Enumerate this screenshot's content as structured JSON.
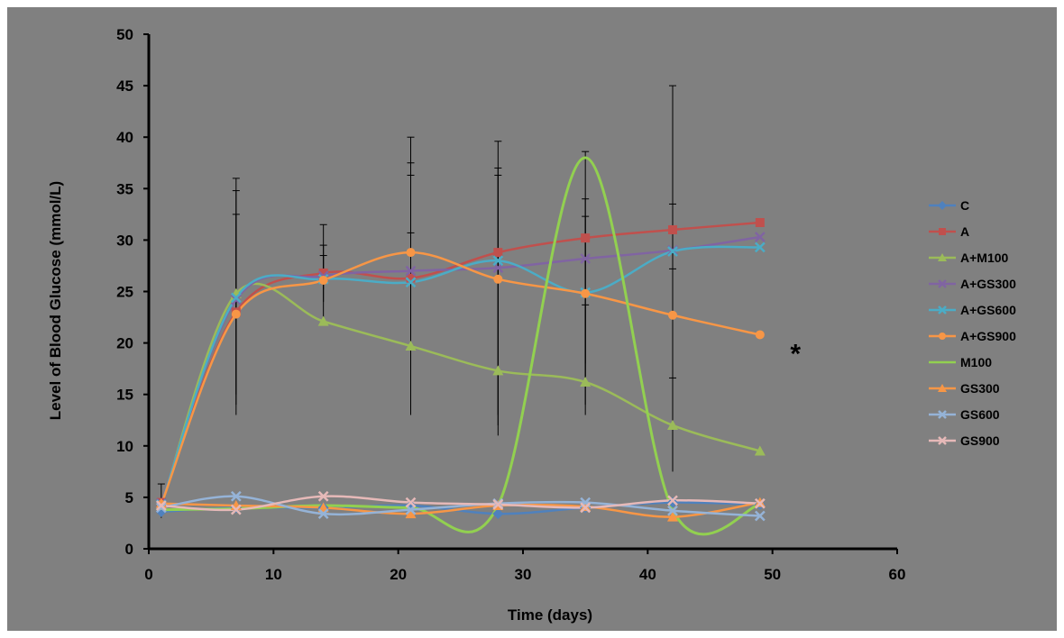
{
  "chart_data": {
    "type": "line",
    "title": "",
    "xlabel": "Time (days)",
    "ylabel": "Level of Blood Glucose (mmol/L)",
    "xlim": [
      0,
      60
    ],
    "ylim": [
      0,
      50
    ],
    "x_ticks": [
      0,
      10,
      20,
      30,
      40,
      50,
      60
    ],
    "y_ticks": [
      0,
      5,
      10,
      15,
      20,
      25,
      30,
      35,
      40,
      45,
      50
    ],
    "grid": false,
    "legend_position": "right",
    "x": [
      1,
      7,
      14,
      21,
      28,
      35,
      42,
      49
    ],
    "series": [
      {
        "name": "C",
        "color": "#4f81bd",
        "marker": "diamond",
        "values": [
          3.6,
          4.0,
          4.0,
          4.2,
          3.4,
          4.0,
          4.5,
          4.3
        ]
      },
      {
        "name": "A",
        "color": "#c0504d",
        "marker": "square",
        "values": [
          4.5,
          23.0,
          26.8,
          26.3,
          28.8,
          30.2,
          31.0,
          31.7
        ]
      },
      {
        "name": "A+M100",
        "color": "#9bbb59",
        "marker": "triangle",
        "values": [
          4.2,
          24.8,
          22.1,
          19.7,
          17.3,
          16.2,
          12.0,
          9.5
        ]
      },
      {
        "name": "A+GS300",
        "color": "#8064a2",
        "marker": "x",
        "values": [
          4.4,
          24.2,
          26.5,
          27.0,
          27.3,
          28.2,
          29.0,
          30.3
        ]
      },
      {
        "name": "A+GS600",
        "color": "#4bacc6",
        "marker": "x",
        "values": [
          4.3,
          24.4,
          26.2,
          25.9,
          28.0,
          24.9,
          28.9,
          29.3
        ]
      },
      {
        "name": "A+GS900",
        "color": "#f79646",
        "marker": "circle",
        "values": [
          4.3,
          22.8,
          26.1,
          28.8,
          26.2,
          24.8,
          22.7,
          20.8
        ]
      },
      {
        "name": "M100",
        "color": "#92d050",
        "marker": "none",
        "values": [
          3.8,
          3.9,
          4.2,
          4.0,
          4.2,
          38.0,
          3.8,
          4.3
        ]
      },
      {
        "name": "GS300",
        "color": "#f79646",
        "marker": "triangle",
        "values": [
          4.4,
          4.2,
          4.0,
          3.4,
          4.2,
          4.1,
          3.1,
          4.5
        ]
      },
      {
        "name": "GS600",
        "color": "#95b3d7",
        "marker": "x",
        "values": [
          4.0,
          5.1,
          3.4,
          3.8,
          4.4,
          4.5,
          3.7,
          3.2
        ]
      },
      {
        "name": "GS900",
        "color": "#e6b9b8",
        "marker": "x",
        "values": [
          4.2,
          3.8,
          5.1,
          4.5,
          4.3,
          4.0,
          4.7,
          4.4
        ]
      }
    ],
    "error_bars": [
      {
        "x": 1,
        "low": 3.0,
        "high": 6.3
      },
      {
        "x": 7,
        "low": 14.0,
        "high": 36.0
      },
      {
        "x": 7,
        "low": 13.0,
        "high": 34.8
      },
      {
        "x": 7,
        "low": 15.0,
        "high": 32.5
      },
      {
        "x": 14,
        "low": 22.3,
        "high": 31.5
      },
      {
        "x": 14,
        "low": 24.0,
        "high": 29.5
      },
      {
        "x": 14,
        "low": 25.2,
        "high": 28.5
      },
      {
        "x": 21,
        "low": 13.0,
        "high": 40.0
      },
      {
        "x": 21,
        "low": 15.0,
        "high": 37.5
      },
      {
        "x": 21,
        "low": 17.0,
        "high": 36.3
      },
      {
        "x": 21,
        "low": 20.0,
        "high": 30.7
      },
      {
        "x": 28,
        "low": 11.0,
        "high": 39.6
      },
      {
        "x": 28,
        "low": 12.0,
        "high": 37.0
      },
      {
        "x": 28,
        "low": 13.0,
        "high": 36.3
      },
      {
        "x": 35,
        "low": 16.5,
        "high": 38.6
      },
      {
        "x": 35,
        "low": 14.0,
        "high": 34.0
      },
      {
        "x": 35,
        "low": 18.0,
        "high": 32.3
      },
      {
        "x": 35,
        "low": 13.0,
        "high": 23.7
      },
      {
        "x": 42,
        "low": 17.0,
        "high": 45.0
      },
      {
        "x": 42,
        "low": 16.0,
        "high": 33.5
      },
      {
        "x": 42,
        "low": 18.2,
        "high": 27.2
      },
      {
        "x": 42,
        "low": 7.5,
        "high": 16.6
      }
    ],
    "annotation": {
      "text": "*",
      "x": 52,
      "y": 20
    }
  }
}
